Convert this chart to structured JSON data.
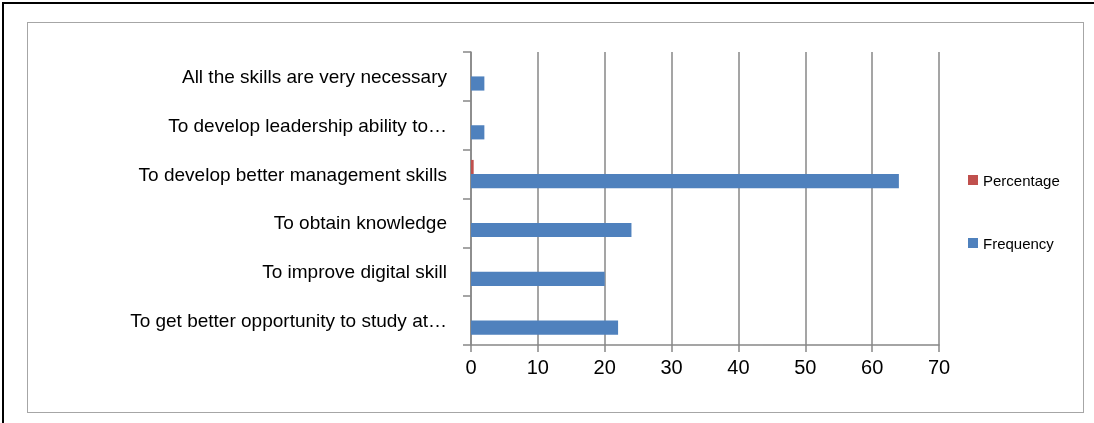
{
  "chart_data": {
    "type": "bar",
    "orientation": "horizontal",
    "categories": [
      "All the skills are very necessary",
      "To develop leadership ability to…",
      "To develop better management skills",
      "To obtain knowledge",
      "To improve digital skill",
      "To get better opportunity to study at…"
    ],
    "series": [
      {
        "name": "Percentage",
        "color": "#c0504d",
        "values": [
          null,
          null,
          0.4,
          null,
          null,
          null
        ]
      },
      {
        "name": "Frequency",
        "color": "#4f81bd",
        "values": [
          2,
          2,
          64,
          24,
          20,
          22
        ]
      }
    ],
    "xlim": [
      0,
      70
    ],
    "xticks": [
      0,
      10,
      20,
      30,
      40,
      50,
      60,
      70
    ],
    "grid": "x",
    "legend": "right"
  }
}
